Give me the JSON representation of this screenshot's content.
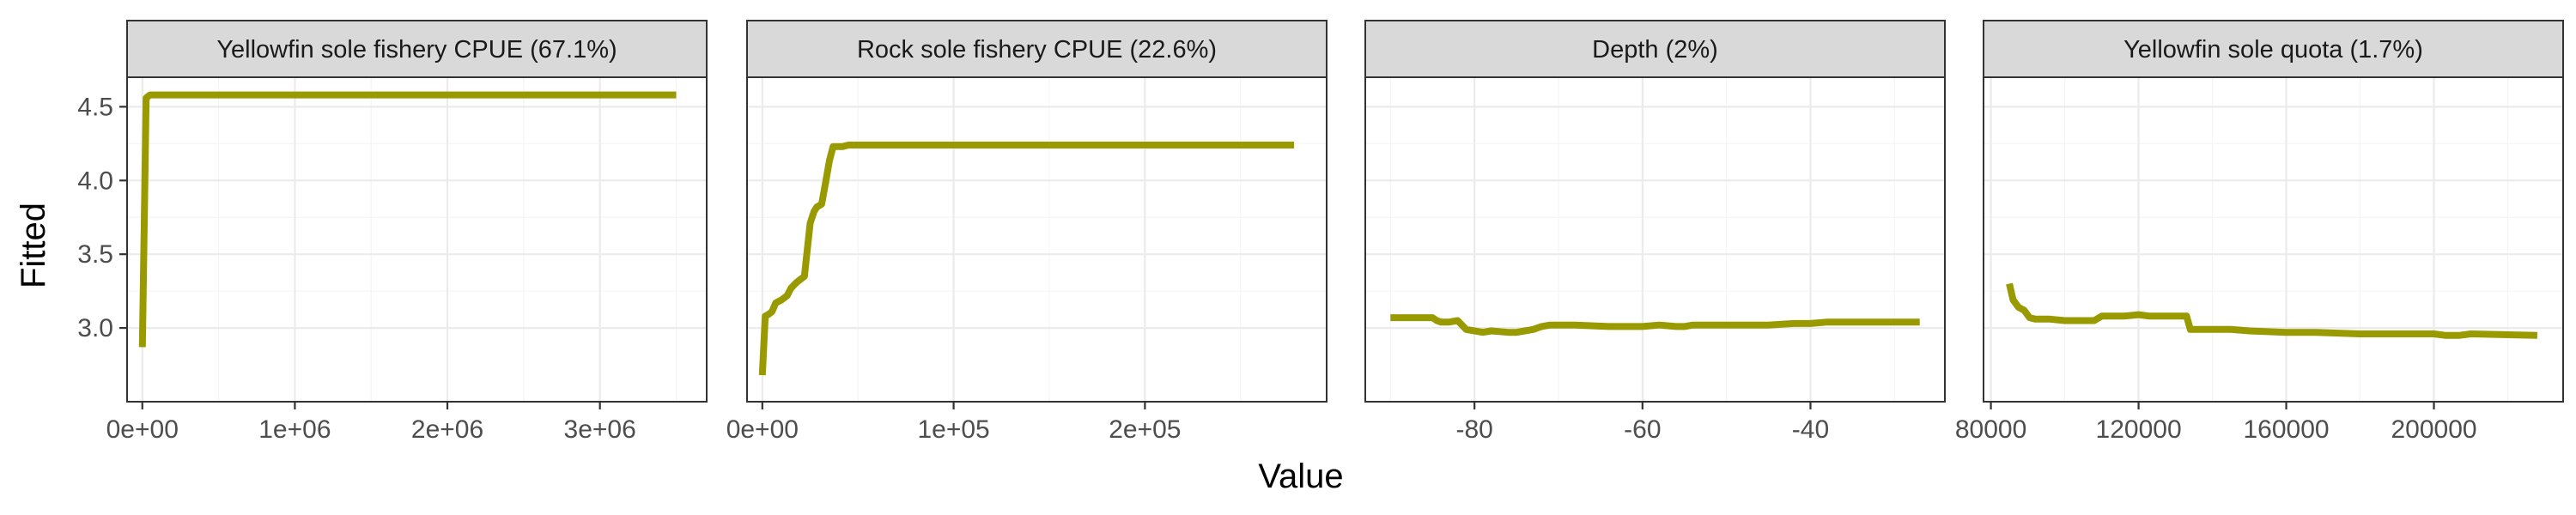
{
  "chart_data": {
    "type": "line",
    "layout": "facet-row",
    "xlabel": "Value",
    "ylabel": "Fitted",
    "ylim": [
      2.5,
      4.7
    ],
    "y_ticks": [
      3.0,
      3.5,
      4.0,
      4.5
    ],
    "y_tick_labels": [
      "3.0",
      "3.5",
      "4.0",
      "4.5"
    ],
    "line_color": "#999900",
    "grid": true,
    "panels": [
      {
        "title": "Yellowfin sole fishery CPUE (67.1%)",
        "xlim": [
          -100000,
          3700000
        ],
        "x_ticks": [
          0,
          1000000,
          2000000,
          3000000
        ],
        "x_tick_labels": [
          "0e+00",
          "1e+06",
          "2e+06",
          "3e+06"
        ],
        "x": [
          0,
          25000,
          50000,
          100000,
          500000,
          1000000,
          2000000,
          3000000,
          3500000
        ],
        "y": [
          2.87,
          4.56,
          4.58,
          4.58,
          4.58,
          4.58,
          4.58,
          4.58,
          4.58
        ]
      },
      {
        "title": "Rock sole fishery CPUE (22.6%)",
        "xlim": [
          -8000,
          295000
        ],
        "x_ticks": [
          0,
          100000,
          200000
        ],
        "x_tick_labels": [
          "0e+00",
          "1e+05",
          "2e+05"
        ],
        "x": [
          0,
          1500,
          3000,
          5000,
          7000,
          10000,
          13000,
          15000,
          18000,
          22000,
          25000,
          27000,
          28500,
          31000,
          33000,
          35000,
          37000,
          39000,
          42000,
          45000,
          50000,
          100000,
          200000,
          278000
        ],
        "y": [
          2.68,
          3.08,
          3.09,
          3.11,
          3.17,
          3.19,
          3.22,
          3.27,
          3.31,
          3.35,
          3.71,
          3.79,
          3.82,
          3.84,
          3.98,
          4.13,
          4.23,
          4.23,
          4.23,
          4.24,
          4.24,
          4.24,
          4.24,
          4.24
        ]
      },
      {
        "title": "Depth (2%)",
        "xlim": [
          -93,
          -24
        ],
        "x_ticks": [
          -80,
          -60,
          -40
        ],
        "x_tick_labels": [
          "-80",
          "-60",
          "-40"
        ],
        "x": [
          -90,
          -87,
          -86,
          -85,
          -84.5,
          -84,
          -83,
          -82,
          -81,
          -80,
          -79,
          -78,
          -76,
          -75,
          -74,
          -73,
          -72,
          -71,
          -68,
          -64,
          -60,
          -58,
          -56,
          -55,
          -54,
          -50,
          -45,
          -42,
          -40,
          -38,
          -36,
          -33,
          -27
        ],
        "y": [
          3.07,
          3.07,
          3.07,
          3.07,
          3.05,
          3.04,
          3.04,
          3.05,
          2.99,
          2.98,
          2.97,
          2.98,
          2.97,
          2.97,
          2.98,
          2.99,
          3.01,
          3.02,
          3.02,
          3.01,
          3.01,
          3.02,
          3.01,
          3.01,
          3.02,
          3.02,
          3.02,
          3.03,
          3.03,
          3.04,
          3.04,
          3.04,
          3.04
        ]
      },
      {
        "title": "Yellowfin sole quota (1.7%)",
        "xlim": [
          78000,
          235000
        ],
        "x_ticks": [
          80000,
          120000,
          160000,
          200000
        ],
        "x_tick_labels": [
          "80000",
          "120000",
          "160000",
          "200000"
        ],
        "x": [
          85000,
          86000,
          87500,
          89000,
          90500,
          92000,
          96000,
          100000,
          105000,
          108000,
          110000,
          116000,
          120000,
          123000,
          128000,
          133000,
          134000,
          142000,
          145000,
          150000,
          160000,
          168000,
          180000,
          200000,
          203000,
          207000,
          210000,
          228000
        ],
        "y": [
          3.3,
          3.19,
          3.14,
          3.12,
          3.07,
          3.06,
          3.06,
          3.05,
          3.05,
          3.05,
          3.08,
          3.08,
          3.09,
          3.08,
          3.08,
          3.08,
          2.99,
          2.99,
          2.99,
          2.98,
          2.97,
          2.97,
          2.96,
          2.96,
          2.95,
          2.95,
          2.96,
          2.95
        ]
      }
    ]
  }
}
